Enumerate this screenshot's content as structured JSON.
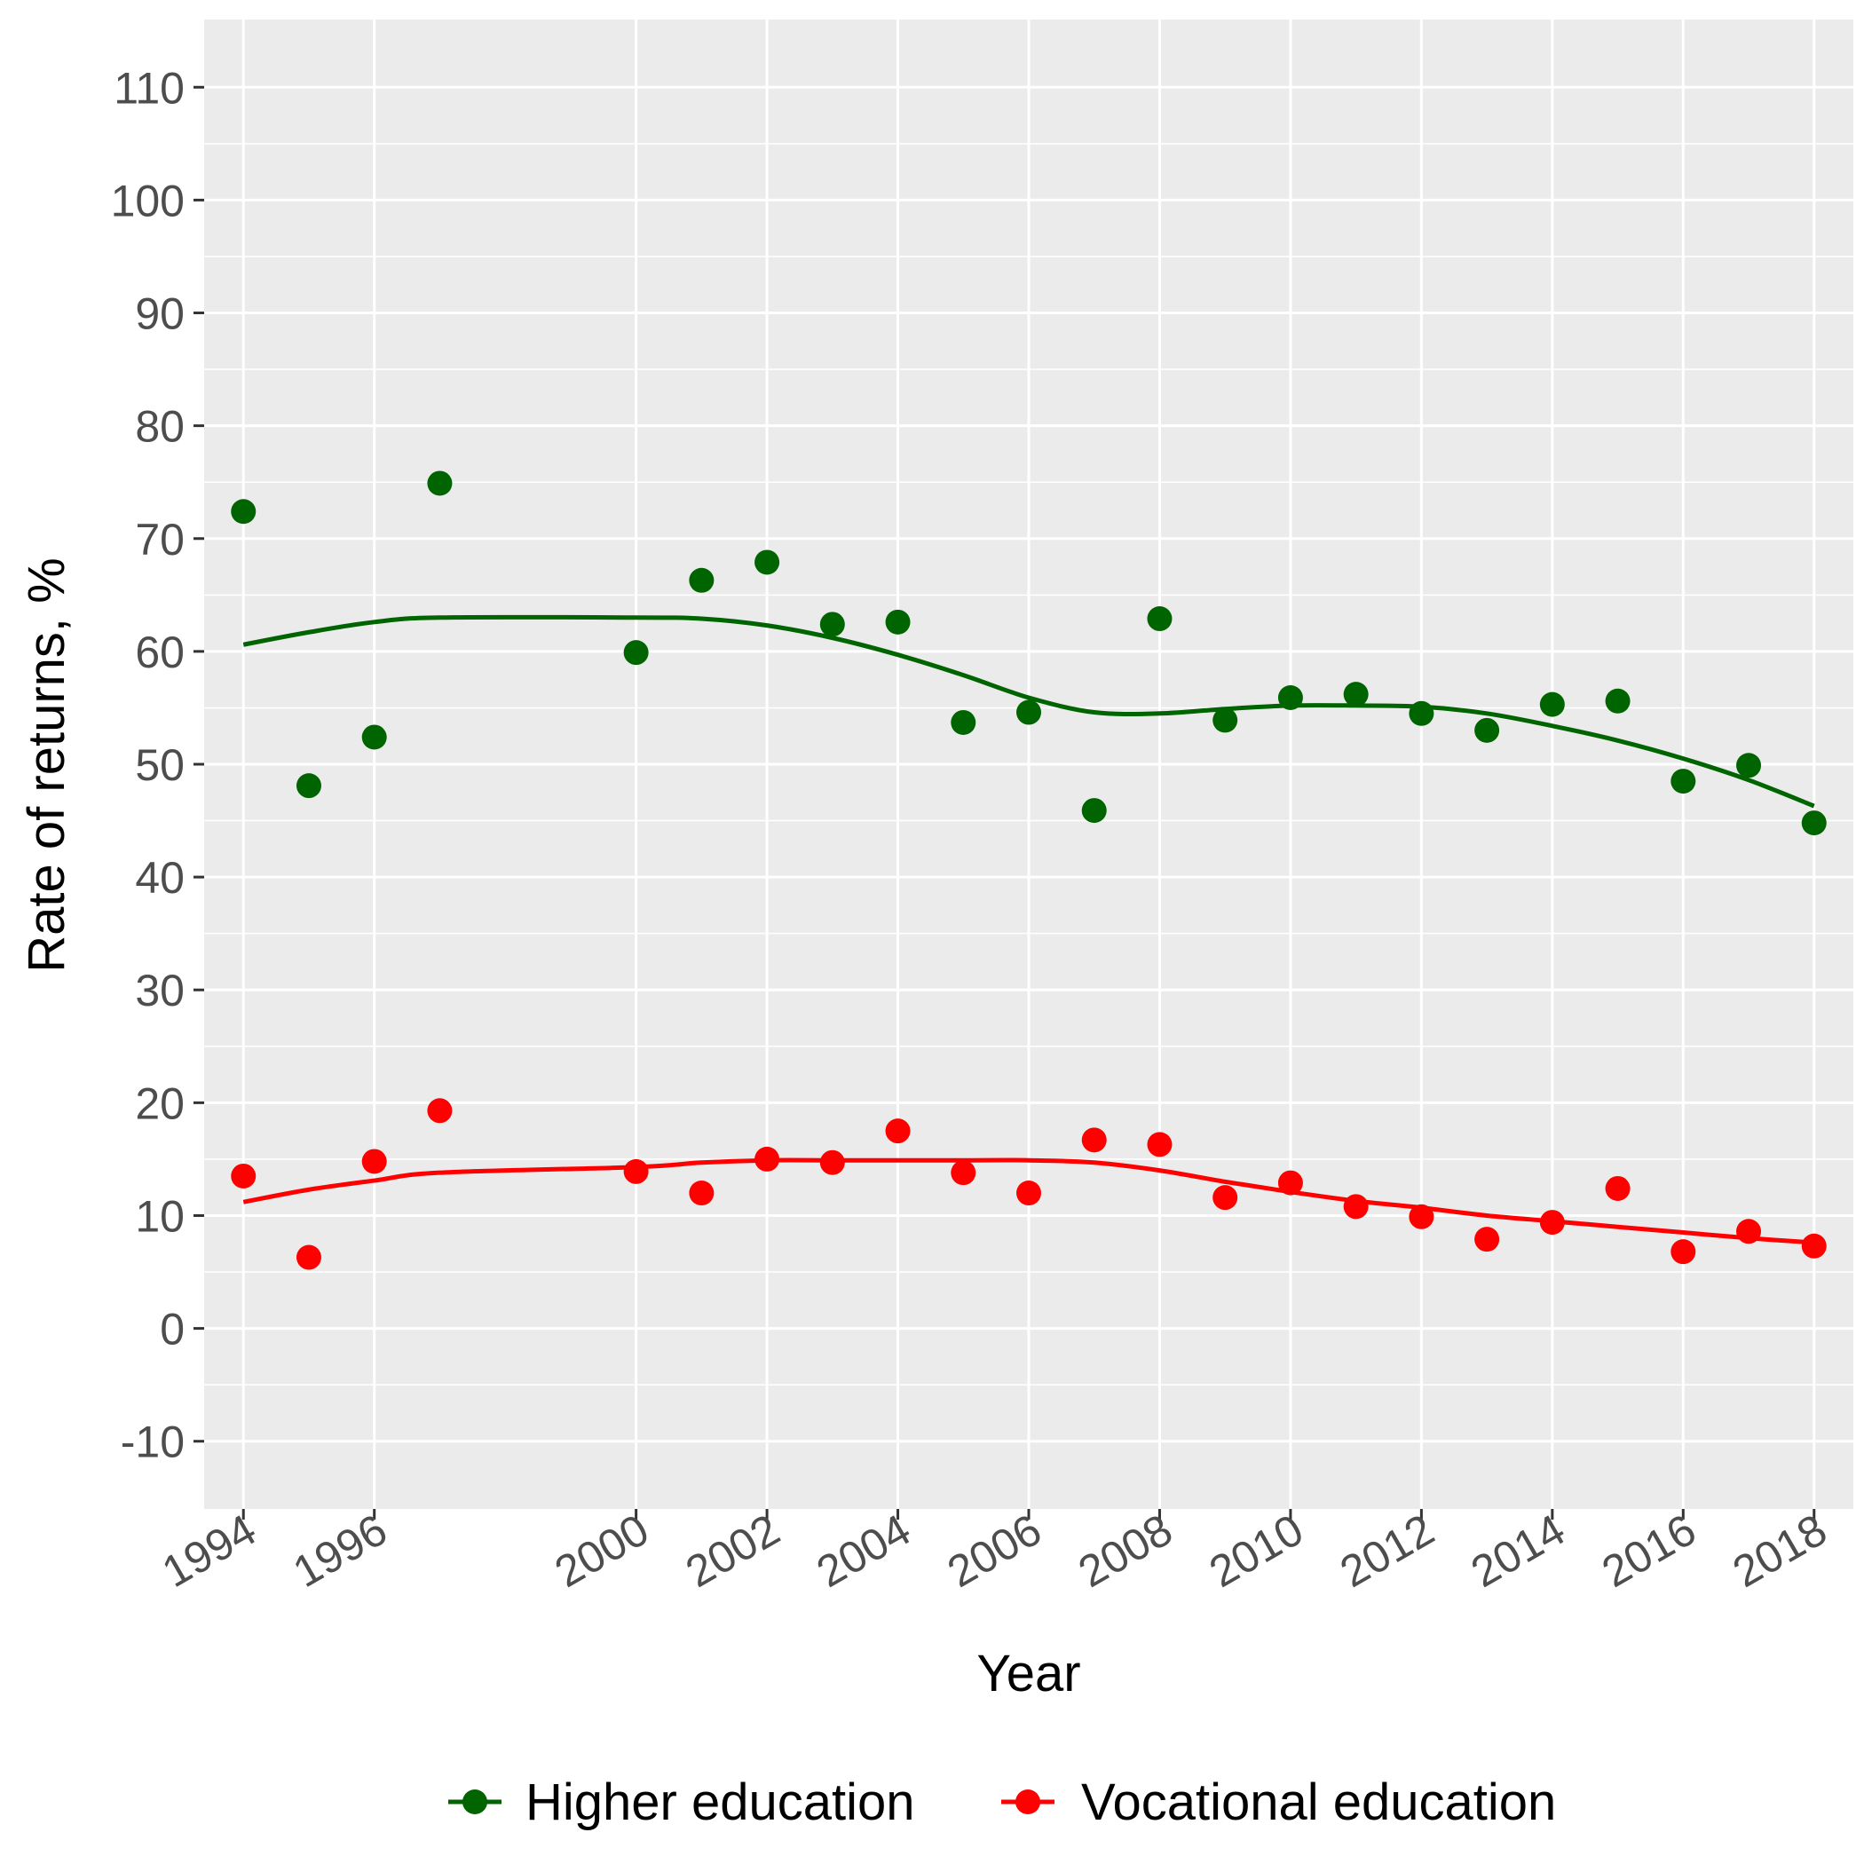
{
  "chart_data": {
    "type": "scatter",
    "title": "",
    "xlabel": "Year",
    "ylabel": "Rate of returns, %",
    "xlim": [
      1993.4,
      2018.6
    ],
    "ylim": [
      -16,
      116
    ],
    "x_ticks": [
      1994,
      1996,
      2000,
      2002,
      2004,
      2006,
      2008,
      2010,
      2012,
      2014,
      2016,
      2018
    ],
    "y_ticks": [
      -10,
      0,
      10,
      20,
      30,
      40,
      50,
      60,
      70,
      80,
      90,
      100,
      110
    ],
    "grid": true,
    "legend_position": "bottom",
    "x": [
      1994,
      1995,
      1996,
      1997,
      2000,
      2001,
      2002,
      2003,
      2004,
      2005,
      2006,
      2007,
      2008,
      2009,
      2010,
      2011,
      2012,
      2013,
      2014,
      2015,
      2016,
      2017,
      2018
    ],
    "series": [
      {
        "name": "Higher education",
        "color": "#006400",
        "values": [
          72.4,
          48.1,
          52.4,
          74.9,
          59.9,
          66.3,
          67.9,
          62.4,
          62.6,
          53.7,
          54.6,
          45.9,
          62.9,
          53.9,
          55.9,
          56.2,
          54.5,
          53.0,
          55.3,
          55.6,
          48.5,
          49.9,
          44.8
        ],
        "trend": [
          60.6,
          61.7,
          62.6,
          63.0,
          63.0,
          62.9,
          62.3,
          61.2,
          59.7,
          57.9,
          55.9,
          54.6,
          54.5,
          54.9,
          55.2,
          55.2,
          55.1,
          54.5,
          53.4,
          52.1,
          50.5,
          48.6,
          46.3
        ]
      },
      {
        "name": "Vocational education",
        "color": "#ff0000",
        "values": [
          13.5,
          6.3,
          14.8,
          19.3,
          13.9,
          12.0,
          15.0,
          14.7,
          17.5,
          13.8,
          12.0,
          16.7,
          16.3,
          11.6,
          12.9,
          10.8,
          9.9,
          7.9,
          9.4,
          12.4,
          6.8,
          8.6,
          7.3
        ],
        "trend": [
          11.2,
          12.3,
          13.1,
          13.8,
          14.3,
          14.7,
          14.9,
          14.9,
          14.9,
          14.9,
          14.9,
          14.7,
          14.0,
          13.0,
          12.1,
          11.3,
          10.7,
          10.0,
          9.5,
          9.0,
          8.5,
          8.0,
          7.6
        ]
      }
    ]
  }
}
